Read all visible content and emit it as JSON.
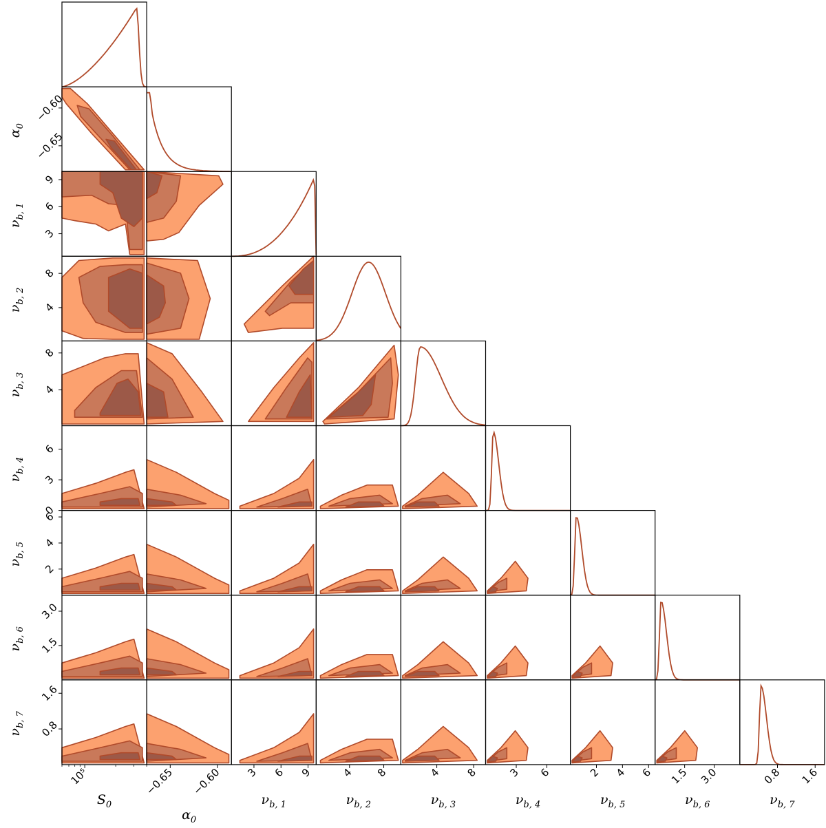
{
  "chart_data": {
    "type": "corner",
    "colors": {
      "outer": "#fca16f",
      "mid": "#c9795a",
      "inner": "#9c5948",
      "line": "#b04a2a",
      "frame": "#000000"
    },
    "params": [
      {
        "name": "S_0",
        "label": "S",
        "sub": "0",
        "ticks": [
          "10⁵"
        ],
        "ticks_y": []
      },
      {
        "name": "alpha_0",
        "label": "α",
        "sub": "0",
        "ticks": [
          "−0.65",
          "−0.60"
        ],
        "ticks_y": [
          "−0.60",
          "−0.65"
        ]
      },
      {
        "name": "nu_b1",
        "label": "ν",
        "sub": "b, 1",
        "ticks": [
          "3",
          "6",
          "9"
        ],
        "ticks_y": [
          "9",
          "6",
          "3"
        ]
      },
      {
        "name": "nu_b2",
        "label": "ν",
        "sub": "b, 2",
        "ticks": [
          "4",
          "8"
        ],
        "ticks_y": [
          "8",
          "4"
        ]
      },
      {
        "name": "nu_b3",
        "label": "ν",
        "sub": "b, 3",
        "ticks": [
          "4",
          "8"
        ],
        "ticks_y": [
          "8",
          "4"
        ]
      },
      {
        "name": "nu_b4",
        "label": "ν",
        "sub": "b, 4",
        "ticks": [
          "3",
          "6"
        ],
        "ticks_y": [
          "6",
          "3",
          "0"
        ]
      },
      {
        "name": "nu_b5",
        "label": "ν",
        "sub": "b, 5",
        "ticks": [
          "2",
          "4",
          "6"
        ],
        "ticks_y": [
          "6",
          "4",
          "2"
        ]
      },
      {
        "name": "nu_b6",
        "label": "ν",
        "sub": "b, 6",
        "ticks": [
          "1.5",
          "3.0"
        ],
        "ticks_y": [
          "3.0",
          "1.5"
        ]
      },
      {
        "name": "nu_b7",
        "label": "ν",
        "sub": "b, 7",
        "ticks": [
          "0.8",
          "1.6"
        ],
        "ticks_y": [
          "1.6",
          "0.8"
        ]
      }
    ],
    "x_ranges": [
      [
        60000,
        400000
      ],
      [
        -0.675,
        -0.585
      ],
      [
        0.5,
        9.9
      ],
      [
        0.1,
        10.0
      ],
      [
        0.1,
        9.3
      ],
      [
        0,
        8.3
      ],
      [
        0,
        6.5
      ],
      [
        0,
        4.3
      ],
      [
        0,
        1.8
      ]
    ],
    "y_ranges": [
      null,
      [
        -0.684,
        -0.572
      ],
      [
        0.5,
        9.9
      ],
      [
        0.1,
        10.0
      ],
      [
        0.1,
        9.3
      ],
      [
        0,
        8.3
      ],
      [
        0,
        6.5
      ],
      [
        0,
        3.7
      ],
      [
        0,
        1.9
      ]
    ],
    "x_scale": [
      "log",
      "linear",
      "linear",
      "linear",
      "linear",
      "linear",
      "linear",
      "linear",
      "linear"
    ],
    "x_tick_values": [
      [
        100000
      ],
      [
        -0.65,
        -0.6
      ],
      [
        3,
        6,
        9
      ],
      [
        4,
        8
      ],
      [
        4,
        8
      ],
      [
        3,
        6
      ],
      [
        2,
        4,
        6
      ],
      [
        1.5,
        3.0
      ],
      [
        0.8,
        1.6
      ]
    ],
    "y_tick_values": [
      [],
      [
        -0.6,
        -0.65
      ],
      [
        9,
        6,
        3
      ],
      [
        8,
        4
      ],
      [
        8,
        4
      ],
      [
        6,
        3,
        0
      ],
      [
        6,
        4,
        2
      ],
      [
        3.0,
        1.5
      ],
      [
        1.6,
        0.8
      ]
    ],
    "marginal_peak_fraction": [
      0.88,
      0.01,
      0.98,
      0.62,
      0.23,
      0.09,
      0.07,
      0.07,
      0.25
    ],
    "contour_levels": [
      "outer",
      "mid",
      "inner"
    ],
    "legend": "none",
    "grid": false
  }
}
